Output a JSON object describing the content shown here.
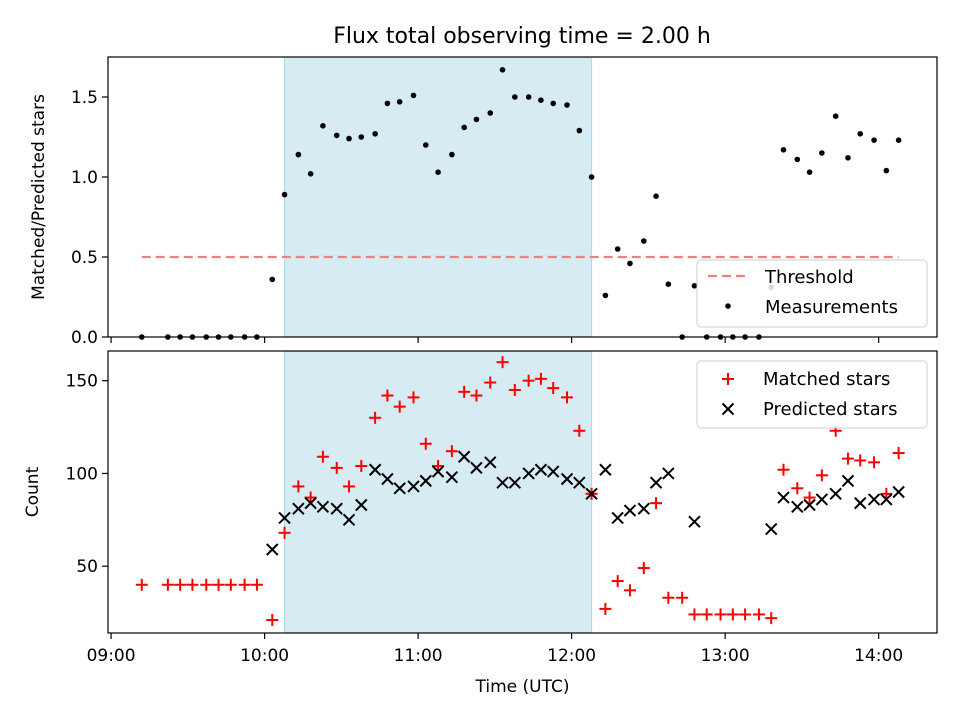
{
  "chart_data": {
    "type": "scatter",
    "title": "Flux total observing time = 2.00 h",
    "xlabel": "Time (UTC)",
    "x_ticks": [
      "09:00",
      "10:00",
      "11:00",
      "12:00",
      "13:00",
      "14:00"
    ],
    "x_tick_values": [
      9.0,
      10.0,
      11.0,
      12.0,
      13.0,
      14.0
    ],
    "xlim": [
      8.98,
      14.38
    ],
    "shaded_span": {
      "start": 10.13,
      "end": 12.13,
      "color": "#add8e6"
    },
    "colors": {
      "matched": "#ff0000",
      "predicted": "#000000",
      "measurements": "#000000",
      "threshold": "#f08080"
    },
    "top": {
      "ylabel": "Matched/Predicted stars",
      "ylim": [
        0,
        1.75
      ],
      "y_ticks": [
        "0.0",
        "0.5",
        "1.0",
        "1.5"
      ],
      "y_tick_values": [
        0.0,
        0.5,
        1.0,
        1.5
      ],
      "legend": {
        "position": "lower-right",
        "threshold_label": "Threshold",
        "measurements_label": "Measurements"
      },
      "threshold": {
        "value": 0.5,
        "x_start": 9.2,
        "x_end": 14.13
      },
      "measurements": [
        [
          9.2,
          0
        ],
        [
          9.37,
          0
        ],
        [
          9.45,
          0
        ],
        [
          9.53,
          0
        ],
        [
          9.62,
          0
        ],
        [
          9.7,
          0
        ],
        [
          9.78,
          0
        ],
        [
          9.87,
          0
        ],
        [
          9.95,
          0
        ],
        [
          10.05,
          0.36
        ],
        [
          10.13,
          0.89
        ],
        [
          10.22,
          1.14
        ],
        [
          10.3,
          1.02
        ],
        [
          10.38,
          1.32
        ],
        [
          10.47,
          1.26
        ],
        [
          10.55,
          1.24
        ],
        [
          10.63,
          1.25
        ],
        [
          10.72,
          1.27
        ],
        [
          10.8,
          1.46
        ],
        [
          10.88,
          1.47
        ],
        [
          10.97,
          1.51
        ],
        [
          11.05,
          1.2
        ],
        [
          11.13,
          1.03
        ],
        [
          11.22,
          1.14
        ],
        [
          11.3,
          1.31
        ],
        [
          11.38,
          1.36
        ],
        [
          11.47,
          1.4
        ],
        [
          11.55,
          1.67
        ],
        [
          11.63,
          1.5
        ],
        [
          11.72,
          1.5
        ],
        [
          11.8,
          1.48
        ],
        [
          11.88,
          1.46
        ],
        [
          11.97,
          1.45
        ],
        [
          12.05,
          1.29
        ],
        [
          12.13,
          1.0
        ],
        [
          12.22,
          0.26
        ],
        [
          12.3,
          0.55
        ],
        [
          12.38,
          0.46
        ],
        [
          12.47,
          0.6
        ],
        [
          12.55,
          0.88
        ],
        [
          12.63,
          0.33
        ],
        [
          12.72,
          0
        ],
        [
          12.8,
          0.32
        ],
        [
          12.88,
          0
        ],
        [
          12.97,
          0
        ],
        [
          13.05,
          0
        ],
        [
          13.13,
          0
        ],
        [
          13.22,
          0
        ],
        [
          13.3,
          0.31
        ],
        [
          13.38,
          1.17
        ],
        [
          13.47,
          1.11
        ],
        [
          13.55,
          1.03
        ],
        [
          13.63,
          1.15
        ],
        [
          13.72,
          1.38
        ],
        [
          13.8,
          1.12
        ],
        [
          13.88,
          1.27
        ],
        [
          13.97,
          1.23
        ],
        [
          14.05,
          1.04
        ],
        [
          14.13,
          1.23
        ]
      ]
    },
    "bottom": {
      "ylabel": "Count",
      "ylim": [
        14,
        166
      ],
      "y_ticks": [
        "50",
        "100",
        "150"
      ],
      "y_tick_values": [
        50,
        100,
        150
      ],
      "legend": {
        "position": "top-right",
        "matched_label": "Matched stars",
        "predicted_label": "Predicted stars"
      },
      "matched": [
        [
          9.2,
          40
        ],
        [
          9.37,
          40
        ],
        [
          9.45,
          40
        ],
        [
          9.53,
          40
        ],
        [
          9.62,
          40
        ],
        [
          9.7,
          40
        ],
        [
          9.78,
          40
        ],
        [
          9.87,
          40
        ],
        [
          9.95,
          40
        ],
        [
          10.05,
          21
        ],
        [
          10.13,
          68
        ],
        [
          10.22,
          93
        ],
        [
          10.3,
          87
        ],
        [
          10.38,
          109
        ],
        [
          10.47,
          103
        ],
        [
          10.55,
          93
        ],
        [
          10.63,
          104
        ],
        [
          10.72,
          130
        ],
        [
          10.8,
          142
        ],
        [
          10.88,
          136
        ],
        [
          10.97,
          141
        ],
        [
          11.05,
          116
        ],
        [
          11.13,
          104
        ],
        [
          11.22,
          112
        ],
        [
          11.3,
          144
        ],
        [
          11.38,
          142
        ],
        [
          11.47,
          149
        ],
        [
          11.55,
          160
        ],
        [
          11.63,
          145
        ],
        [
          11.72,
          150
        ],
        [
          11.8,
          151
        ],
        [
          11.88,
          146
        ],
        [
          11.97,
          141
        ],
        [
          12.05,
          123
        ],
        [
          12.13,
          89
        ],
        [
          12.22,
          27
        ],
        [
          12.3,
          42
        ],
        [
          12.38,
          37
        ],
        [
          12.47,
          49
        ],
        [
          12.55,
          84
        ],
        [
          12.63,
          33
        ],
        [
          12.72,
          33
        ],
        [
          12.8,
          24
        ],
        [
          12.88,
          24
        ],
        [
          12.97,
          24
        ],
        [
          13.05,
          24
        ],
        [
          13.13,
          24
        ],
        [
          13.22,
          24
        ],
        [
          13.3,
          22
        ],
        [
          13.38,
          102
        ],
        [
          13.47,
          92
        ],
        [
          13.55,
          87
        ],
        [
          13.63,
          99
        ],
        [
          13.72,
          123
        ],
        [
          13.8,
          108
        ],
        [
          13.88,
          107
        ],
        [
          13.97,
          106
        ],
        [
          14.05,
          89
        ],
        [
          14.13,
          111
        ]
      ],
      "predicted": [
        [
          10.05,
          59
        ],
        [
          10.13,
          76
        ],
        [
          10.22,
          81
        ],
        [
          10.3,
          84
        ],
        [
          10.38,
          82
        ],
        [
          10.47,
          81
        ],
        [
          10.55,
          75
        ],
        [
          10.63,
          83
        ],
        [
          10.72,
          102
        ],
        [
          10.8,
          97
        ],
        [
          10.88,
          92
        ],
        [
          10.97,
          93
        ],
        [
          11.05,
          96
        ],
        [
          11.13,
          101
        ],
        [
          11.22,
          98
        ],
        [
          11.3,
          109
        ],
        [
          11.38,
          103
        ],
        [
          11.47,
          106
        ],
        [
          11.55,
          95
        ],
        [
          11.63,
          95
        ],
        [
          11.72,
          100
        ],
        [
          11.8,
          102
        ],
        [
          11.88,
          101
        ],
        [
          11.97,
          97
        ],
        [
          12.05,
          95
        ],
        [
          12.13,
          89
        ],
        [
          12.22,
          102
        ],
        [
          12.3,
          76
        ],
        [
          12.38,
          80
        ],
        [
          12.47,
          81
        ],
        [
          12.55,
          95
        ],
        [
          12.63,
          100
        ],
        [
          12.8,
          74
        ],
        [
          13.3,
          70
        ],
        [
          13.38,
          87
        ],
        [
          13.47,
          82
        ],
        [
          13.55,
          83
        ],
        [
          13.63,
          86
        ],
        [
          13.72,
          89
        ],
        [
          13.8,
          96
        ],
        [
          13.88,
          84
        ],
        [
          13.97,
          86
        ],
        [
          14.05,
          86
        ],
        [
          14.13,
          90
        ]
      ]
    }
  }
}
